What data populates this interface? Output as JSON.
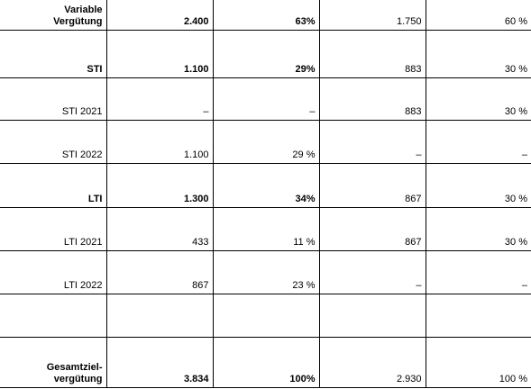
{
  "table": {
    "rows": [
      {
        "label_lines": [
          "Variable",
          "Vergütung"
        ],
        "bold": true,
        "cells": [
          "2.400",
          "63%",
          "1.750",
          "60 %"
        ],
        "bold_cells": [
          true,
          true,
          false,
          false
        ]
      },
      {
        "label_lines": [
          "STI"
        ],
        "bold": true,
        "cells": [
          "1.100",
          "29%",
          "883",
          "30 %"
        ],
        "bold_cells": [
          true,
          true,
          false,
          false
        ]
      },
      {
        "label_lines": [
          "STI 2021"
        ],
        "bold": false,
        "cells": [
          "–",
          "–",
          "883",
          "30 %"
        ],
        "bold_cells": [
          false,
          false,
          false,
          false
        ]
      },
      {
        "label_lines": [
          "STI 2022"
        ],
        "bold": false,
        "cells": [
          "1.100",
          "29 %",
          "–",
          "–"
        ],
        "bold_cells": [
          false,
          false,
          false,
          false
        ]
      },
      {
        "label_lines": [
          "LTI"
        ],
        "bold": true,
        "cells": [
          "1.300",
          "34%",
          "867",
          "30 %"
        ],
        "bold_cells": [
          true,
          true,
          false,
          false
        ]
      },
      {
        "label_lines": [
          "LTI 2021"
        ],
        "bold": false,
        "cells": [
          "433",
          "11 %",
          "867",
          "30 %"
        ],
        "bold_cells": [
          false,
          false,
          false,
          false
        ]
      },
      {
        "label_lines": [
          "LTI 2022"
        ],
        "bold": false,
        "cells": [
          "867",
          "23 %",
          "–",
          "–"
        ],
        "bold_cells": [
          false,
          false,
          false,
          false
        ]
      },
      {
        "label_lines": [],
        "bold": false,
        "cells": [
          "",
          "",
          "",
          ""
        ],
        "bold_cells": [
          false,
          false,
          false,
          false
        ]
      },
      {
        "label_lines": [
          "Gesamtziel-",
          "vergütung"
        ],
        "bold": true,
        "cells": [
          "3.834",
          "100%",
          "2.930",
          "100 %"
        ],
        "bold_cells": [
          true,
          true,
          false,
          false
        ]
      }
    ]
  }
}
